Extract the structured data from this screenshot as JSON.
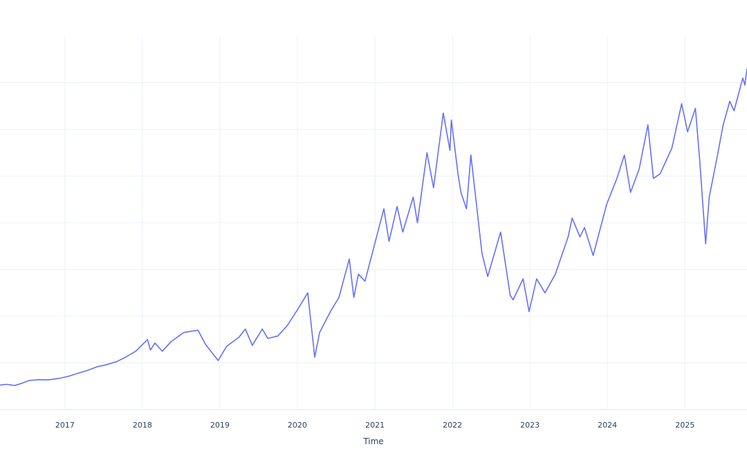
{
  "chart_data": {
    "type": "line",
    "title": "",
    "xlabel": "Time",
    "ylabel": "",
    "grid": true,
    "legend": "none",
    "colors": {
      "line": "#636efa",
      "grid": "#ebf0f8",
      "axis_text": "#2a3f5f",
      "background": "#ffffff"
    },
    "x_tick_labels": [
      "2017",
      "2018",
      "2019",
      "2020",
      "2021",
      "2022",
      "2023",
      "2024",
      "2025"
    ],
    "xlim": [
      "2016-03-01",
      "2025-10-20"
    ],
    "series": [
      {
        "name": "",
        "points": [
          [
            "2016-03-01",
            1.05
          ],
          [
            "2016-04-01",
            1.08
          ],
          [
            "2016-05-10",
            1.03
          ],
          [
            "2016-06-10",
            1.12
          ],
          [
            "2016-07-15",
            1.24
          ],
          [
            "2016-09-01",
            1.28
          ],
          [
            "2016-10-15",
            1.27
          ],
          [
            "2016-12-01",
            1.33
          ],
          [
            "2017-01-15",
            1.42
          ],
          [
            "2017-03-01",
            1.55
          ],
          [
            "2017-04-15",
            1.67
          ],
          [
            "2017-06-01",
            1.83
          ],
          [
            "2017-07-15",
            1.92
          ],
          [
            "2017-09-01",
            2.05
          ],
          [
            "2017-10-15",
            2.25
          ],
          [
            "2017-12-01",
            2.5
          ],
          [
            "2018-01-25",
            3.0
          ],
          [
            "2018-02-08",
            2.55
          ],
          [
            "2018-03-01",
            2.85
          ],
          [
            "2018-04-05",
            2.5
          ],
          [
            "2018-05-15",
            2.9
          ],
          [
            "2018-07-15",
            3.3
          ],
          [
            "2018-09-20",
            3.4
          ],
          [
            "2018-10-25",
            2.8
          ],
          [
            "2018-12-24",
            2.1
          ],
          [
            "2019-02-01",
            2.7
          ],
          [
            "2019-04-01",
            3.1
          ],
          [
            "2019-05-01",
            3.45
          ],
          [
            "2019-06-03",
            2.75
          ],
          [
            "2019-07-20",
            3.45
          ],
          [
            "2019-08-15",
            3.05
          ],
          [
            "2019-10-01",
            3.15
          ],
          [
            "2019-11-15",
            3.6
          ],
          [
            "2019-12-31",
            4.25
          ],
          [
            "2020-02-19",
            5.0
          ],
          [
            "2020-03-23",
            2.25
          ],
          [
            "2020-04-15",
            3.3
          ],
          [
            "2020-06-05",
            4.2
          ],
          [
            "2020-07-15",
            4.8
          ],
          [
            "2020-09-02",
            6.45
          ],
          [
            "2020-09-23",
            4.8
          ],
          [
            "2020-10-15",
            5.8
          ],
          [
            "2020-11-15",
            5.5
          ],
          [
            "2020-12-31",
            7.1
          ],
          [
            "2021-02-12",
            8.6
          ],
          [
            "2021-03-08",
            7.2
          ],
          [
            "2021-04-15",
            8.7
          ],
          [
            "2021-05-12",
            7.6
          ],
          [
            "2021-06-30",
            9.1
          ],
          [
            "2021-07-20",
            8.0
          ],
          [
            "2021-09-03",
            11.0
          ],
          [
            "2021-10-04",
            9.5
          ],
          [
            "2021-11-19",
            12.7
          ],
          [
            "2021-12-20",
            11.1
          ],
          [
            "2021-12-27",
            12.4
          ],
          [
            "2022-01-27",
            10.1
          ],
          [
            "2022-02-10",
            9.3
          ],
          [
            "2022-03-08",
            8.6
          ],
          [
            "2022-03-29",
            10.9
          ],
          [
            "2022-05-20",
            6.7
          ],
          [
            "2022-06-16",
            5.7
          ],
          [
            "2022-08-16",
            7.6
          ],
          [
            "2022-09-30",
            4.9
          ],
          [
            "2022-10-14",
            4.7
          ],
          [
            "2022-11-30",
            5.6
          ],
          [
            "2022-12-28",
            4.2
          ],
          [
            "2023-02-02",
            5.6
          ],
          [
            "2023-03-13",
            5.0
          ],
          [
            "2023-05-01",
            5.8
          ],
          [
            "2023-06-30",
            7.4
          ],
          [
            "2023-07-19",
            8.2
          ],
          [
            "2023-08-25",
            7.4
          ],
          [
            "2023-09-15",
            7.8
          ],
          [
            "2023-10-26",
            6.6
          ],
          [
            "2023-12-29",
            8.8
          ],
          [
            "2024-02-15",
            9.9
          ],
          [
            "2024-03-21",
            10.9
          ],
          [
            "2024-04-19",
            9.3
          ],
          [
            "2024-05-30",
            10.3
          ],
          [
            "2024-07-10",
            12.2
          ],
          [
            "2024-08-05",
            9.9
          ],
          [
            "2024-09-06",
            10.1
          ],
          [
            "2024-10-31",
            11.2
          ],
          [
            "2024-12-16",
            13.1
          ],
          [
            "2025-01-13",
            11.9
          ],
          [
            "2025-02-19",
            12.9
          ],
          [
            "2025-03-10",
            10.8
          ],
          [
            "2025-04-08",
            7.1
          ],
          [
            "2025-04-25",
            9.1
          ],
          [
            "2025-05-30",
            10.7
          ],
          [
            "2025-06-30",
            12.2
          ],
          [
            "2025-07-31",
            13.2
          ],
          [
            "2025-08-20",
            12.8
          ],
          [
            "2025-09-30",
            14.2
          ],
          [
            "2025-10-10",
            13.9
          ],
          [
            "2025-10-20",
            14.6
          ]
        ]
      }
    ]
  }
}
